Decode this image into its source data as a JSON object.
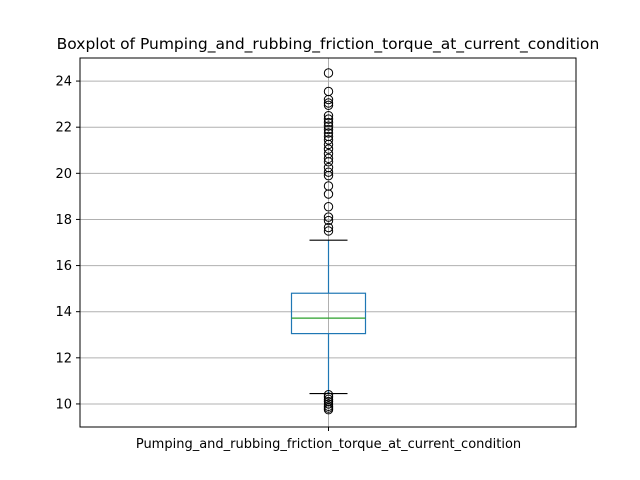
{
  "chart_data": {
    "type": "boxplot",
    "title": "Boxplot of Pumping_and_rubbing_friction_torque_at_current_condition",
    "categories": [
      "Pumping_and_rubbing_friction_torque_at_current_condition"
    ],
    "xlabel": "",
    "ylabel": "",
    "ylim": [
      9.0,
      25.0
    ],
    "yticks": [
      10,
      12,
      14,
      16,
      18,
      20,
      22,
      24
    ],
    "grid": true,
    "box": {
      "whisker_low": 10.45,
      "q1": 13.05,
      "median": 13.72,
      "q3": 14.8,
      "whisker_high": 17.1
    },
    "outliers": [
      24.35,
      23.55,
      23.2,
      23.05,
      22.95,
      22.5,
      22.35,
      22.2,
      22.05,
      21.9,
      21.75,
      21.6,
      21.45,
      21.25,
      21.05,
      20.85,
      20.65,
      20.5,
      20.25,
      20.05,
      19.9,
      19.45,
      19.1,
      18.55,
      18.1,
      17.95,
      17.65,
      17.5,
      10.4,
      10.3,
      10.2,
      10.1,
      10.0,
      9.9,
      9.82,
      9.75
    ],
    "colors": {
      "box": "#1f77b4",
      "whisker": "#1f77b4",
      "cap": "#000000",
      "median": "#2ca02c",
      "flier": "#000000",
      "grid": "#b0b0b0"
    }
  }
}
